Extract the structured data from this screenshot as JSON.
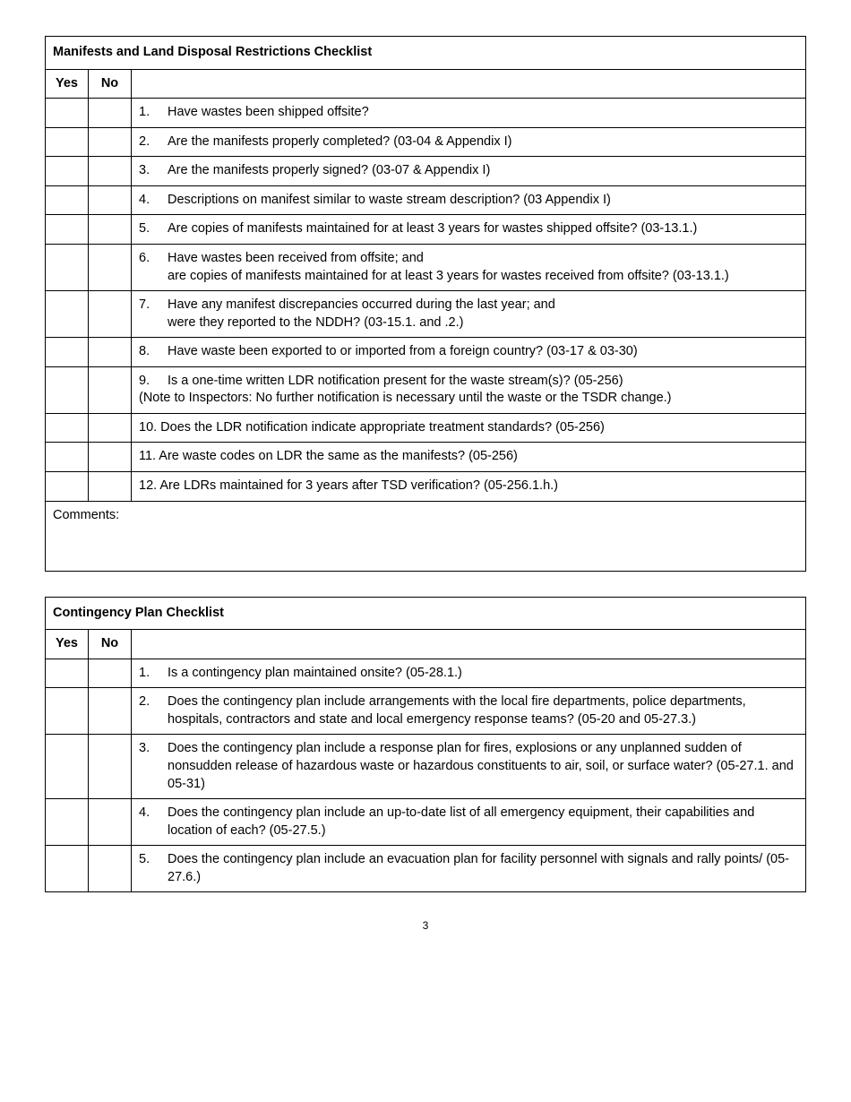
{
  "section1": {
    "title": "Manifests and Land Disposal Restrictions Checklist",
    "col_yes": "Yes",
    "col_no": "No",
    "items": [
      {
        "num": "1.",
        "text": "Have wastes been shipped offsite?"
      },
      {
        "num": "2.",
        "text": "Are the manifests properly completed?  (03-04 & Appendix I)"
      },
      {
        "num": "3.",
        "text": "Are the manifests properly signed?  (03-07 & Appendix I)"
      },
      {
        "num": "4.",
        "text": " Descriptions on manifest similar to waste stream description? (03 Appendix I)"
      },
      {
        "num": "5.",
        "text": "Are copies of manifests maintained for at least 3 years for wastes shipped offsite? (03-13.1.)"
      },
      {
        "num": "6.",
        "text": "Have wastes been received from offsite; and\nare copies of manifests maintained for at least 3 years for wastes received from offsite? (03-13.1.)"
      },
      {
        "num": "7.",
        "text": "Have any manifest discrepancies occurred during the last year; and\nwere they reported to the NDDH? (03-15.1. and .2.)"
      },
      {
        "num": "8.",
        "text": " Have waste been exported to or  imported from  a foreign country? (03-17 & 03-30)"
      },
      {
        "num": "9.",
        "text": "Is a one-time written LDR notification present for the waste stream(s)?  (05-256)",
        "note": "(Note to Inspectors: No further notification is necessary until the waste or the TSDR change.)"
      },
      {
        "num": "10.",
        "text": "Does the LDR notification indicate appropriate treatment standards?  (05-256)",
        "inline": true
      },
      {
        "num": "11.",
        "text": "Are waste codes on LDR the same as the manifests?  (05-256)",
        "inline": true
      },
      {
        "num": "12.",
        "text": "Are LDRs maintained for 3 years after TSD verification?  (05-256.1.h.)",
        "inline": true
      }
    ],
    "comments_label": "Comments:"
  },
  "section2": {
    "title": "Contingency Plan Checklist",
    "col_yes": "Yes",
    "col_no": "No",
    "items": [
      {
        "num": "1.",
        "text": "Is a contingency plan maintained onsite? (05-28.1.)"
      },
      {
        "num": "2.",
        "text": "Does the contingency plan include arrangements with the local fire departments, police departments, hospitals, contractors and state and local emergency response teams? (05-20 and 05-27.3.)"
      },
      {
        "num": "3.",
        "text": "Does the contingency plan include a response plan for fires, explosions or any unplanned sudden of nonsudden release of hazardous waste or hazardous constituents to air, soil, or surface water? (05-27.1. and 05-31)"
      },
      {
        "num": "4.",
        "text": "Does the contingency plan include an up-to-date list of all emergency equipment, their capabilities and location of each? (05-27.5.)"
      },
      {
        "num": "5.",
        "text": "Does the contingency plan include an evacuation plan for facility personnel with signals and rally points/ (05-27.6.)"
      }
    ]
  },
  "page_number": "3"
}
